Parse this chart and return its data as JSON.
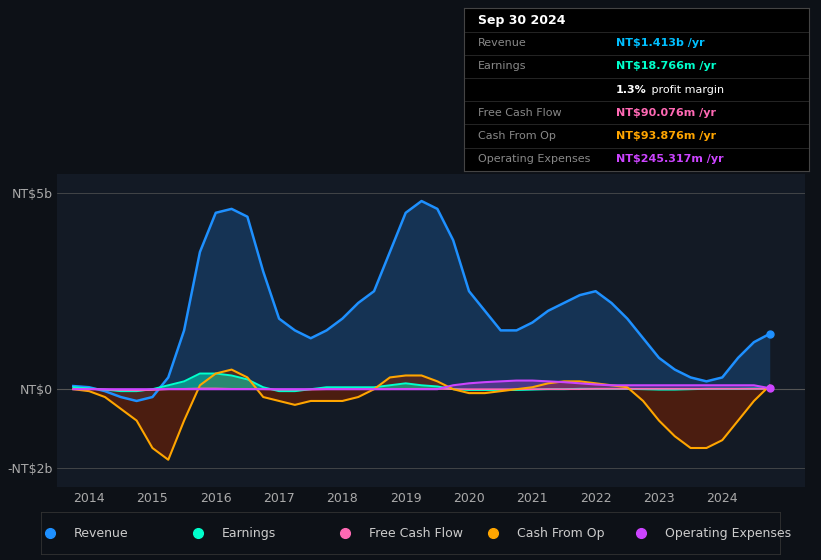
{
  "bg_color": "#0d1117",
  "plot_bg_color": "#131a25",
  "ylim": [
    -2500000000.0,
    5500000000.0
  ],
  "yticks": [
    0,
    5000000000.0,
    -2000000000.0
  ],
  "ytick_labels": [
    "NT$0",
    "NT$5b",
    "-NT$2b"
  ],
  "xlim": [
    2013.5,
    2025.3
  ],
  "xticks": [
    2014,
    2015,
    2016,
    2017,
    2018,
    2019,
    2020,
    2021,
    2022,
    2023,
    2024
  ],
  "colors": {
    "revenue": "#1e90ff",
    "earnings": "#00ffcc",
    "free_cash_flow": "#ff69b4",
    "cash_from_op": "#ffa500",
    "operating_expenses": "#cc44ff"
  },
  "legend": [
    {
      "label": "Revenue",
      "color": "#1e90ff"
    },
    {
      "label": "Earnings",
      "color": "#00ffcc"
    },
    {
      "label": "Free Cash Flow",
      "color": "#ff69b4"
    },
    {
      "label": "Cash From Op",
      "color": "#ffa500"
    },
    {
      "label": "Operating Expenses",
      "color": "#cc44ff"
    }
  ],
  "x": [
    2013.75,
    2014.0,
    2014.25,
    2014.5,
    2014.75,
    2015.0,
    2015.25,
    2015.5,
    2015.75,
    2016.0,
    2016.25,
    2016.5,
    2016.75,
    2017.0,
    2017.25,
    2017.5,
    2017.75,
    2018.0,
    2018.25,
    2018.5,
    2018.75,
    2019.0,
    2019.25,
    2019.5,
    2019.75,
    2020.0,
    2020.25,
    2020.5,
    2020.75,
    2021.0,
    2021.25,
    2021.5,
    2021.75,
    2022.0,
    2022.25,
    2022.5,
    2022.75,
    2023.0,
    2023.25,
    2023.5,
    2023.75,
    2024.0,
    2024.25,
    2024.5,
    2024.75
  ],
  "revenue": [
    80000000.0,
    50000000.0,
    -50000000.0,
    -200000000.0,
    -300000000.0,
    -200000000.0,
    300000000.0,
    1500000000.0,
    3500000000.0,
    4500000000.0,
    4600000000.0,
    4400000000.0,
    3000000000.0,
    1800000000.0,
    1500000000.0,
    1300000000.0,
    1500000000.0,
    1800000000.0,
    2200000000.0,
    2500000000.0,
    3500000000.0,
    4500000000.0,
    4800000000.0,
    4600000000.0,
    3800000000.0,
    2500000000.0,
    2000000000.0,
    1500000000.0,
    1500000000.0,
    1700000000.0,
    2000000000.0,
    2200000000.0,
    2400000000.0,
    2500000000.0,
    2200000000.0,
    1800000000.0,
    1300000000.0,
    800000000.0,
    500000000.0,
    300000000.0,
    200000000.0,
    300000000.0,
    800000000.0,
    1200000000.0,
    1413000000.0
  ],
  "earnings": [
    50000000.0,
    20000000.0,
    -10000000.0,
    -50000000.0,
    -50000000.0,
    0.0,
    100000000.0,
    200000000.0,
    400000000.0,
    400000000.0,
    350000000.0,
    250000000.0,
    50000000.0,
    -50000000.0,
    -50000000.0,
    0.0,
    50000000.0,
    50000000.0,
    50000000.0,
    50000000.0,
    100000000.0,
    150000000.0,
    100000000.0,
    70000000.0,
    0.0,
    -20000000.0,
    -20000000.0,
    -20000000.0,
    -20000000.0,
    -10000000.0,
    0.0,
    0.0,
    10000000.0,
    10000000.0,
    10000000.0,
    10000000.0,
    0.0,
    -10000000.0,
    -10000000.0,
    0.0,
    10000000.0,
    10000000.0,
    10000000.0,
    15000000.0,
    18770000.0
  ],
  "free_cash_flow": [
    0.0,
    0.0,
    -10000000.0,
    -20000000.0,
    -30000000.0,
    -20000000.0,
    0.0,
    10000000.0,
    20000000.0,
    20000000.0,
    10000000.0,
    10000000.0,
    0.0,
    -10000000.0,
    -10000000.0,
    -10000000.0,
    0.0,
    0.0,
    0.0,
    0.0,
    0.0,
    10000000.0,
    10000000.0,
    10000000.0,
    0.0,
    0.0,
    0.0,
    0.0,
    0.0,
    0.0,
    0.0,
    0.0,
    0.0,
    10000000.0,
    10000000.0,
    10000000.0,
    10000000.0,
    10000000.0,
    10000000.0,
    10000000.0,
    10000000.0,
    10000000.0,
    10000000.0,
    9000000.0,
    9000000.0
  ],
  "cash_from_op": [
    0.0,
    -50000000.0,
    -200000000.0,
    -500000000.0,
    -800000000.0,
    -1500000000.0,
    -1800000000.0,
    -800000000.0,
    100000000.0,
    400000000.0,
    500000000.0,
    300000000.0,
    -200000000.0,
    -300000000.0,
    -400000000.0,
    -300000000.0,
    -300000000.0,
    -300000000.0,
    -200000000.0,
    0.0,
    300000000.0,
    350000000.0,
    350000000.0,
    200000000.0,
    0.0,
    -100000000.0,
    -100000000.0,
    -50000000.0,
    0.0,
    50000000.0,
    150000000.0,
    200000000.0,
    200000000.0,
    150000000.0,
    100000000.0,
    50000000.0,
    -300000000.0,
    -800000000.0,
    -1200000000.0,
    -1500000000.0,
    -1500000000.0,
    -1300000000.0,
    -800000000.0,
    -300000000.0,
    93880000.0
  ],
  "operating_expenses": [
    0.0,
    0.0,
    0.0,
    0.0,
    0.0,
    0.0,
    0.0,
    0.0,
    0.0,
    0.0,
    0.0,
    0.0,
    0.0,
    0.0,
    0.0,
    0.0,
    0.0,
    0.0,
    0.0,
    0.0,
    0.0,
    0.0,
    0.0,
    0.0,
    100000000.0,
    150000000.0,
    180000000.0,
    200000000.0,
    220000000.0,
    220000000.0,
    200000000.0,
    180000000.0,
    150000000.0,
    120000000.0,
    100000000.0,
    100000000.0,
    100000000.0,
    100000000.0,
    100000000.0,
    100000000.0,
    100000000.0,
    100000000.0,
    100000000.0,
    100000000.0,
    24540000.0
  ]
}
